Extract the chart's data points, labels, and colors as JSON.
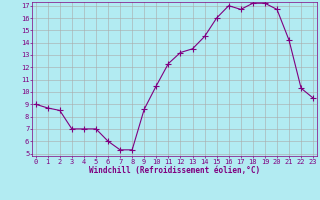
{
  "x": [
    0,
    1,
    2,
    3,
    4,
    5,
    6,
    7,
    8,
    9,
    10,
    11,
    12,
    13,
    14,
    15,
    16,
    17,
    18,
    19,
    20,
    21,
    22,
    23
  ],
  "y": [
    9,
    8.7,
    8.5,
    7,
    7,
    7,
    6,
    5.3,
    5.3,
    8.6,
    10.5,
    12.3,
    13.2,
    13.5,
    14.5,
    16,
    17,
    16.7,
    17.2,
    17.2,
    16.7,
    14.2,
    10.3,
    9.5
  ],
  "line_color": "#800080",
  "marker_color": "#800080",
  "bg_color": "#b2ebf2",
  "grid_color": "#aaaaaa",
  "xlabel": "Windchill (Refroidissement éolien,°C)",
  "ylim_min": 5,
  "ylim_max": 17,
  "xlim_min": 0,
  "xlim_max": 23,
  "yticks": [
    5,
    6,
    7,
    8,
    9,
    10,
    11,
    12,
    13,
    14,
    15,
    16,
    17
  ],
  "xticks": [
    0,
    1,
    2,
    3,
    4,
    5,
    6,
    7,
    8,
    9,
    10,
    11,
    12,
    13,
    14,
    15,
    16,
    17,
    18,
    19,
    20,
    21,
    22,
    23
  ],
  "font_color": "#800080",
  "tick_fontsize": 5,
  "xlabel_fontsize": 5.5,
  "linewidth": 0.8,
  "markersize": 2.0
}
